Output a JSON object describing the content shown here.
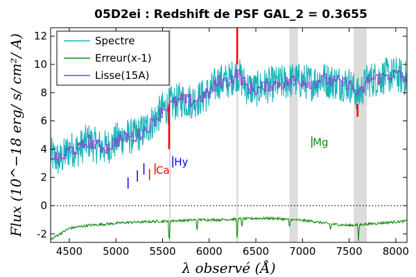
{
  "chart_data": {
    "type": "line",
    "title": "05D2ei : Redshift de PSF GAL_2 = 0.3655",
    "xlabel": "λ observé (Å)",
    "ylabel": "Flux (10^−18 erg/ s/ cm²/ A)",
    "xlim": [
      4300,
      8120
    ],
    "ylim": [
      -2.6,
      12.6
    ],
    "xticks": [
      "4500",
      "5000",
      "5500",
      "6000",
      "6500",
      "7000",
      "7500",
      "8000"
    ],
    "yticks": [
      "-2",
      "0",
      "2",
      "4",
      "6",
      "8",
      "10",
      "12"
    ],
    "zero_line": "dotted",
    "legend_position": "top-left",
    "series": [
      {
        "name": "Spectre",
        "color": "#17b3b8",
        "x": [
          4300,
          4400,
          4500,
          4600,
          4700,
          4800,
          4900,
          5000,
          5100,
          5200,
          5300,
          5400,
          5500,
          5600,
          5700,
          5800,
          5900,
          6000,
          6100,
          6200,
          6300,
          6400,
          6500,
          6600,
          6700,
          6800,
          6900,
          7000,
          7100,
          7200,
          7300,
          7400,
          7500,
          7600,
          7700,
          7800,
          7900,
          8000,
          8100
        ],
        "y": [
          3.6,
          3.2,
          4.0,
          4.0,
          4.6,
          4.2,
          4.1,
          4.6,
          4.9,
          4.9,
          5.3,
          6.0,
          6.8,
          7.2,
          7.5,
          7.4,
          7.6,
          8.0,
          8.8,
          8.8,
          9.4,
          8.4,
          8.2,
          8.5,
          8.6,
          8.7,
          8.9,
          8.8,
          8.7,
          9.0,
          8.8,
          8.7,
          8.6,
          7.8,
          8.9,
          9.0,
          9.2,
          9.3,
          9.0
        ],
        "noise_amplitude": 1.3
      },
      {
        "name": "Erreur(x-1)",
        "color": "#118a11",
        "x": [
          4300,
          4500,
          4700,
          4900,
          5100,
          5300,
          5500,
          5700,
          5900,
          6100,
          6300,
          6500,
          6700,
          6900,
          7100,
          7300,
          7500,
          7700,
          7900,
          8100
        ],
        "y": [
          -2.4,
          -1.6,
          -1.4,
          -1.3,
          -1.2,
          -1.15,
          -1.1,
          -1.05,
          -1.0,
          -1.0,
          -0.95,
          -0.9,
          -0.9,
          -1.0,
          -1.1,
          -1.3,
          -1.4,
          -1.3,
          -1.2,
          -1.1
        ],
        "dips": [
          [
            5570,
            -2.7
          ],
          [
            5870,
            -1.9
          ],
          [
            6300,
            -2.6
          ],
          [
            6350,
            -1.6
          ],
          [
            6860,
            -1.6
          ],
          [
            7300,
            -1.7
          ],
          [
            7600,
            -2.5
          ]
        ]
      },
      {
        "name": "Lisse(15A)",
        "color": "#a030d8",
        "x": [
          4300,
          4400,
          4500,
          4600,
          4700,
          4800,
          4900,
          5000,
          5100,
          5200,
          5300,
          5400,
          5500,
          5600,
          5700,
          5800,
          5900,
          6000,
          6100,
          6200,
          6300,
          6400,
          6500,
          6600,
          6700,
          6800,
          6900,
          7000,
          7100,
          7200,
          7300,
          7400,
          7500,
          7600,
          7700,
          7800,
          7900,
          8000,
          8100
        ],
        "y": [
          3.6,
          3.2,
          4.0,
          4.0,
          4.6,
          4.2,
          4.1,
          4.6,
          4.9,
          4.9,
          5.3,
          6.0,
          6.8,
          7.2,
          7.5,
          7.4,
          7.6,
          8.0,
          8.8,
          8.8,
          9.4,
          8.4,
          8.2,
          8.5,
          8.6,
          8.7,
          8.9,
          8.8,
          8.7,
          9.0,
          8.8,
          8.7,
          8.6,
          7.8,
          8.9,
          9.0,
          9.2,
          9.3,
          9.0
        ],
        "noise_amplitude": 0.45
      }
    ],
    "masked_bands": [
      {
        "x0": 5570,
        "x1": 5590,
        "color": "#dcdcdc"
      },
      {
        "x0": 6290,
        "x1": 6310,
        "color": "#dcdcdc"
      },
      {
        "x0": 6860,
        "x1": 6950,
        "color": "#dcdcdc"
      },
      {
        "x0": 7550,
        "x1": 7690,
        "color": "#dcdcdc"
      }
    ],
    "red_spikes": [
      {
        "x": 5570,
        "y0": 4.0,
        "y1": 7.2
      },
      {
        "x": 6300,
        "y0": 10.0,
        "y1": 12.6
      },
      {
        "x": 7590,
        "y0": 6.3,
        "y1": 7.2
      }
    ],
    "line_markers": [
      {
        "x": 5130,
        "y0": 1.2,
        "y1": 2.0,
        "color": "#0000ff"
      },
      {
        "x": 5230,
        "y0": 1.7,
        "y1": 2.5,
        "color": "#0000ff"
      },
      {
        "x": 5300,
        "y0": 2.2,
        "y1": 3.0,
        "color": "#0000ff"
      },
      {
        "x": 5360,
        "y0": 1.8,
        "y1": 2.6,
        "color": "#ff0000"
      },
      {
        "x": 5420,
        "y0": 2.2,
        "y1": 3.0,
        "color": "#ff0000"
      },
      {
        "x": 5610,
        "y0": 2.7,
        "y1": 3.5,
        "color": "#0000ff"
      },
      {
        "x": 7100,
        "y0": 4.1,
        "y1": 4.9,
        "color": "#118a11"
      }
    ],
    "annotations": [
      {
        "text": "Ca",
        "x": 5430,
        "y": 2.25,
        "color": "#ff0000"
      },
      {
        "text": "Hy",
        "x": 5625,
        "y": 2.85,
        "color": "#0000ff"
      },
      {
        "text": "Mg",
        "x": 7110,
        "y": 4.25,
        "color": "#118a11"
      }
    ]
  }
}
